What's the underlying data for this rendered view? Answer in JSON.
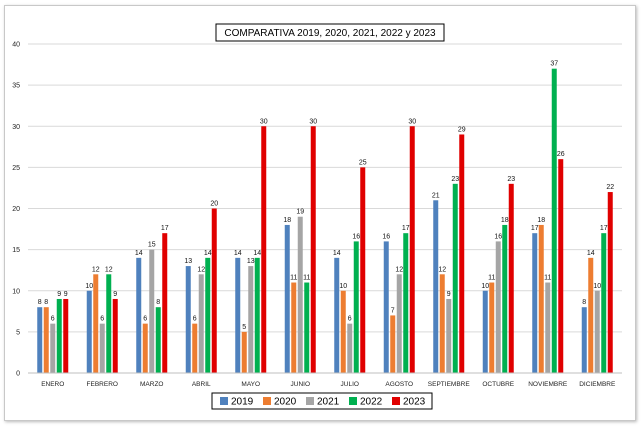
{
  "chart_data": {
    "type": "bar",
    "title": "COMPARATIVA 2019, 2020, 2021, 2022 y 2023",
    "xlabel": "",
    "ylabel": "",
    "ylim": [
      0,
      40
    ],
    "yticks": [
      0,
      5,
      10,
      15,
      20,
      25,
      30,
      35,
      40
    ],
    "grid": true,
    "legend_position": "bottom",
    "categories": [
      "ENERO",
      "FEBRERO",
      "MARZO",
      "ABRIL",
      "MAYO",
      "JUNIO",
      "JULIO",
      "AGOSTO",
      "SEPTIEMBRE",
      "OCTUBRE",
      "NOVIEMBRE",
      "DICIEMBRE"
    ],
    "series": [
      {
        "name": "2019",
        "color": "#4f81bd",
        "values": [
          8,
          10,
          14,
          13,
          14,
          18,
          14,
          16,
          21,
          10,
          17,
          8
        ]
      },
      {
        "name": "2020",
        "color": "#ed7d31",
        "values": [
          8,
          12,
          6,
          6,
          5,
          11,
          10,
          7,
          12,
          11,
          18,
          14
        ]
      },
      {
        "name": "2021",
        "color": "#a5a5a5",
        "values": [
          6,
          6,
          15,
          12,
          13,
          19,
          6,
          12,
          9,
          16,
          11,
          10
        ]
      },
      {
        "name": "2022",
        "color": "#00b050",
        "values": [
          9,
          12,
          8,
          14,
          14,
          11,
          16,
          17,
          23,
          18,
          37,
          17
        ]
      },
      {
        "name": "2023",
        "color": "#e00000",
        "values": [
          9,
          9,
          17,
          20,
          30,
          30,
          25,
          30,
          29,
          23,
          26,
          22
        ]
      }
    ]
  }
}
